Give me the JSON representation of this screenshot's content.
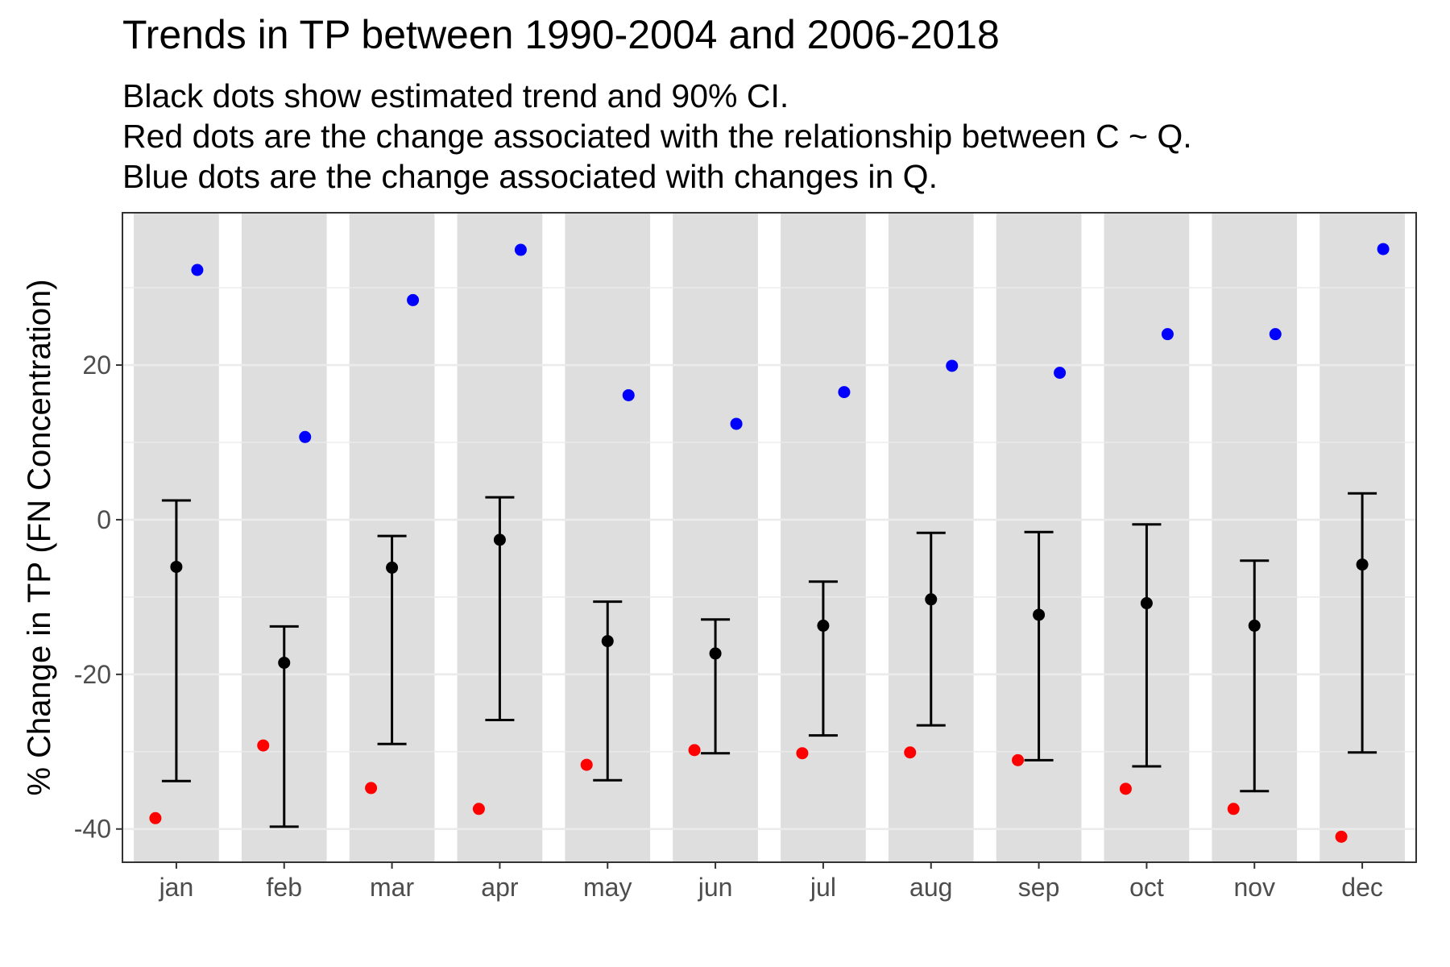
{
  "colors": {
    "band": "#dedede",
    "gridline": "#ebebeb",
    "trend": "#000000",
    "cq_relationship": "#ff0000",
    "q_change": "#0000ff",
    "axis_text": "#4d4d4d"
  },
  "chart_data": {
    "type": "scatter",
    "title": "Trends in TP between 1990-2004 and 2006-2018",
    "subtitle_lines": [
      "Black dots show estimated trend and 90% CI.",
      "Red dots are the change associated with the relationship between C ~ Q.",
      "Blue dots are the change associated with changes in Q."
    ],
    "xlabel": "",
    "ylabel": "% Change in TP (FN Concentration)",
    "ylim": [
      -44.3,
      39.7
    ],
    "yticks": [
      20,
      0,
      -20,
      -40
    ],
    "grid": true,
    "categories": [
      "jan",
      "feb",
      "mar",
      "apr",
      "may",
      "jun",
      "jul",
      "aug",
      "sep",
      "oct",
      "nov",
      "dec"
    ],
    "trend": {
      "estimate": [
        -6.1,
        -18.5,
        -6.2,
        -2.6,
        -15.7,
        -17.3,
        -13.7,
        -10.3,
        -12.3,
        -10.8,
        -13.7,
        -5.8
      ],
      "ci_low": [
        -33.8,
        -39.7,
        -29.0,
        -25.9,
        -33.7,
        -30.2,
        -27.9,
        -26.6,
        -31.1,
        -31.9,
        -35.1,
        -30.1
      ],
      "ci_high": [
        2.5,
        -13.8,
        -2.1,
        2.9,
        -10.6,
        -12.9,
        -8.0,
        -1.7,
        -1.6,
        -0.6,
        -5.3,
        3.4
      ]
    },
    "cq_relationship": [
      -38.6,
      -29.2,
      -34.7,
      -37.4,
      -31.7,
      -29.8,
      -30.2,
      -30.1,
      -31.1,
      -34.8,
      -37.4,
      -41.0
    ],
    "q_change": [
      32.3,
      10.7,
      28.4,
      34.9,
      16.1,
      12.4,
      16.5,
      19.9,
      19.0,
      24.0,
      24.0,
      35.0
    ]
  }
}
